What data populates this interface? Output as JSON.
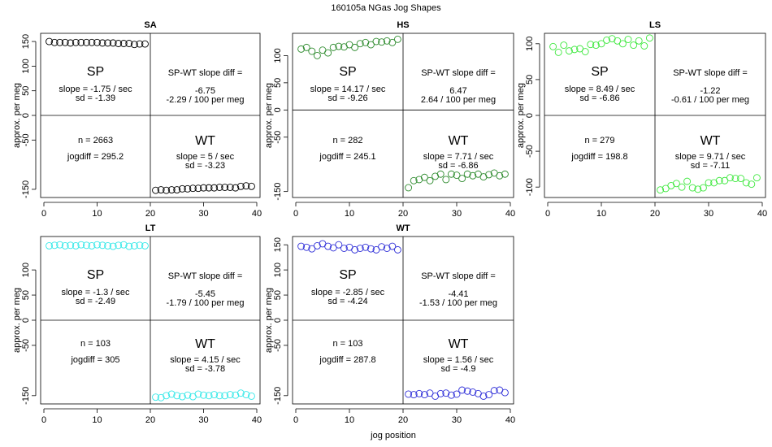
{
  "figure": {
    "title": "160105a   NGas Jog Shapes",
    "xlabel": "jog position",
    "ylabel": "approx. per meg"
  },
  "chart_data": [
    {
      "type": "scatter",
      "title": "SA",
      "color": "#000000",
      "xlim": [
        0,
        40
      ],
      "ylim": [
        -160,
        160
      ],
      "x_ticks": [
        0,
        10,
        20,
        30,
        40
      ],
      "y_ticks": [
        -150,
        -50,
        0,
        50,
        100,
        150
      ],
      "x": [
        1,
        2,
        3,
        4,
        5,
        6,
        7,
        8,
        9,
        10,
        11,
        12,
        13,
        14,
        15,
        16,
        17,
        18,
        19,
        21,
        22,
        23,
        24,
        25,
        26,
        27,
        28,
        29,
        30,
        31,
        32,
        33,
        34,
        35,
        36,
        37,
        38,
        39
      ],
      "y": [
        150,
        148,
        148,
        148,
        147,
        148,
        148,
        148,
        148,
        148,
        147,
        147,
        147,
        146,
        146,
        146,
        144,
        145,
        145,
        -152,
        -151,
        -152,
        -151,
        -151,
        -149,
        -149,
        -148,
        -148,
        -147,
        -147,
        -147,
        -146,
        -146,
        -146,
        -147,
        -144,
        -143,
        -144
      ],
      "sp_label": "SP",
      "sp_slope": "slope = -1.75 / sec",
      "sp_sd": "sd = -1.39",
      "diff_title": "SP-WT slope diff =",
      "diff_value": "-6.75",
      "diff_permeg": "-2.29 / 100 per meg",
      "n": "n = 2663",
      "jogdiff": "jogdiff = 295.2",
      "wt_label": "WT",
      "wt_slope": "slope = 5 / sec",
      "wt_sd": "sd = -3.23"
    },
    {
      "type": "scatter",
      "title": "HS",
      "color": "#2e8b2e",
      "xlim": [
        0,
        40
      ],
      "ylim": [
        -155,
        135
      ],
      "x_ticks": [
        0,
        10,
        20,
        30,
        40
      ],
      "y_ticks": [
        -150,
        -50,
        0,
        50,
        100
      ],
      "x": [
        1,
        2,
        3,
        4,
        5,
        6,
        7,
        8,
        9,
        10,
        11,
        12,
        13,
        14,
        15,
        16,
        17,
        18,
        19,
        21,
        22,
        23,
        24,
        25,
        26,
        27,
        28,
        29,
        30,
        31,
        32,
        33,
        34,
        35,
        36,
        37,
        38,
        39
      ],
      "y": [
        112,
        115,
        108,
        100,
        110,
        105,
        115,
        117,
        116,
        120,
        115,
        122,
        124,
        120,
        126,
        125,
        127,
        124,
        130,
        -143,
        -130,
        -128,
        -124,
        -130,
        -122,
        -118,
        -128,
        -118,
        -120,
        -126,
        -118,
        -121,
        -118,
        -123,
        -119,
        -116,
        -121,
        -118
      ],
      "sp_label": "SP",
      "sp_slope": "slope = 14.17 / sec",
      "sp_sd": "sd = -9.26",
      "diff_title": "SP-WT slope diff =",
      "diff_value": "6.47",
      "diff_permeg": "2.64 / 100 per meg",
      "n": "n = 282",
      "jogdiff": "jogdiff = 245.1",
      "wt_label": "WT",
      "wt_slope": "slope = 7.71 / sec",
      "wt_sd": "sd = -6.86"
    },
    {
      "type": "scatter",
      "title": "LS",
      "color": "#3ee83e",
      "xlim": [
        0,
        40
      ],
      "ylim": [
        -110,
        110
      ],
      "x_ticks": [
        0,
        10,
        20,
        30,
        40
      ],
      "y_ticks": [
        -100,
        -50,
        0,
        50,
        100
      ],
      "x": [
        1,
        2,
        3,
        4,
        5,
        6,
        7,
        8,
        9,
        10,
        11,
        12,
        13,
        14,
        15,
        16,
        17,
        18,
        19,
        21,
        22,
        23,
        24,
        25,
        26,
        27,
        28,
        29,
        30,
        31,
        32,
        33,
        34,
        35,
        36,
        37,
        38,
        39
      ],
      "y": [
        96,
        88,
        98,
        90,
        92,
        93,
        89,
        99,
        98,
        100,
        105,
        107,
        104,
        100,
        106,
        98,
        104,
        97,
        108,
        -104,
        -102,
        -98,
        -95,
        -100,
        -92,
        -101,
        -103,
        -101,
        -94,
        -94,
        -91,
        -91,
        -87,
        -88,
        -88,
        -94,
        -96,
        -87
      ],
      "sp_label": "SP",
      "sp_slope": "slope = 8.49 / sec",
      "sp_sd": "sd = -6.86",
      "diff_title": "SP-WT slope diff =",
      "diff_value": "-1.22",
      "diff_permeg": "-0.61 / 100 per meg",
      "n": "n = 279",
      "jogdiff": "jogdiff = 198.8",
      "wt_label": "WT",
      "wt_slope": "slope = 9.71 / sec",
      "wt_sd": "sd = -7.11"
    },
    {
      "type": "scatter",
      "title": "LT",
      "color": "#33e8e8",
      "xlim": [
        0,
        40
      ],
      "ylim": [
        -160,
        160
      ],
      "x_ticks": [
        0,
        10,
        20,
        30,
        40
      ],
      "y_ticks": [
        -150,
        -50,
        0,
        50,
        100
      ],
      "x": [
        1,
        2,
        3,
        4,
        5,
        6,
        7,
        8,
        9,
        10,
        11,
        12,
        13,
        14,
        15,
        16,
        17,
        18,
        19,
        21,
        22,
        23,
        24,
        25,
        26,
        27,
        28,
        29,
        30,
        31,
        32,
        33,
        34,
        35,
        36,
        37,
        38,
        39
      ],
      "y": [
        148,
        149,
        150,
        148,
        149,
        148,
        150,
        149,
        148,
        150,
        149,
        148,
        147,
        149,
        150,
        147,
        148,
        149,
        148,
        -153,
        -154,
        -150,
        -147,
        -150,
        -152,
        -149,
        -152,
        -147,
        -149,
        -150,
        -148,
        -150,
        -150,
        -148,
        -149,
        -145,
        -148,
        -151
      ],
      "sp_label": "SP",
      "sp_slope": "slope = -1.3 / sec",
      "sp_sd": "sd = -2.49",
      "diff_title": "SP-WT slope diff =",
      "diff_value": "-5.45",
      "diff_permeg": "-1.79 / 100 per meg",
      "n": "n = 103",
      "jogdiff": "jogdiff = 305",
      "wt_label": "WT",
      "wt_slope": "slope = 4.15 / sec",
      "wt_sd": "sd = -3.78"
    },
    {
      "type": "scatter",
      "title": "WT",
      "color": "#3030d8",
      "xlim": [
        0,
        40
      ],
      "ylim": [
        -160,
        160
      ],
      "x_ticks": [
        0,
        10,
        20,
        30,
        40
      ],
      "y_ticks": [
        -150,
        -50,
        0,
        50,
        100,
        150
      ],
      "x": [
        1,
        2,
        3,
        4,
        5,
        6,
        7,
        8,
        9,
        10,
        11,
        12,
        13,
        14,
        15,
        16,
        17,
        18,
        19,
        21,
        22,
        23,
        24,
        25,
        26,
        27,
        28,
        29,
        30,
        31,
        32,
        33,
        34,
        35,
        36,
        37,
        38,
        39
      ],
      "y": [
        147,
        145,
        142,
        148,
        152,
        147,
        144,
        150,
        143,
        145,
        140,
        143,
        145,
        142,
        140,
        146,
        143,
        147,
        140,
        -147,
        -148,
        -146,
        -148,
        -145,
        -151,
        -146,
        -145,
        -149,
        -147,
        -139,
        -141,
        -143,
        -146,
        -151,
        -148,
        -140,
        -139,
        -144
      ],
      "sp_label": "SP",
      "sp_slope": "slope = -2.85 / sec",
      "sp_sd": "sd = -4.24",
      "diff_title": "SP-WT slope diff =",
      "diff_value": "-4.41",
      "diff_permeg": "-1.53 / 100 per meg",
      "n": "n = 103",
      "jogdiff": "jogdiff = 287.8",
      "wt_label": "WT",
      "wt_slope": "slope = 1.56 / sec",
      "wt_sd": "sd = -4.9"
    }
  ]
}
